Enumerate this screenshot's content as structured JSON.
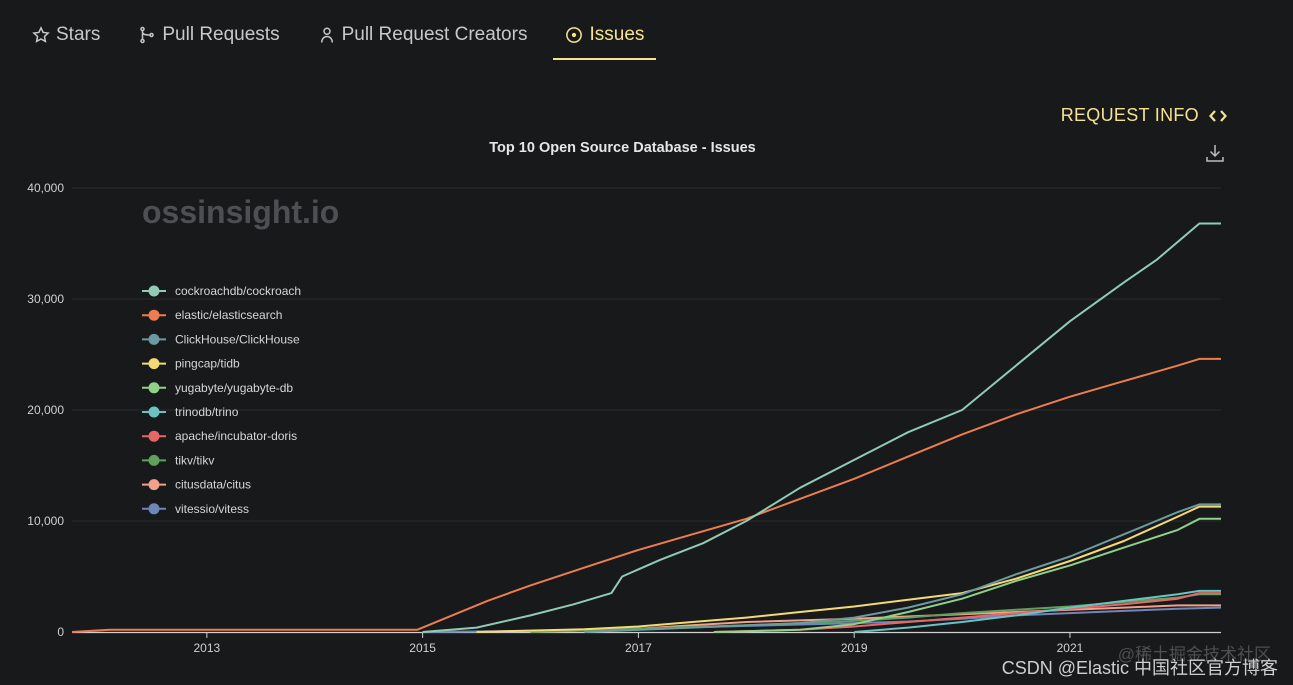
{
  "tabs": [
    {
      "label": "Stars",
      "icon": "star-icon",
      "active": false
    },
    {
      "label": "Pull Requests",
      "icon": "git-pull-request-icon",
      "active": false
    },
    {
      "label": "Pull Request Creators",
      "icon": "person-icon",
      "active": false
    },
    {
      "label": "Issues",
      "icon": "issue-circle-icon",
      "active": true
    }
  ],
  "request_info": {
    "label": "REQUEST INFO",
    "icon": "code-brackets-icon"
  },
  "download": {
    "icon": "download-icon"
  },
  "watermarks": {
    "brand": "ossinsight.io",
    "juejin": "@稀土掘金技术社区",
    "csdn": "CSDN @Elastic 中国社区官方博客"
  },
  "colors": {
    "accent": "#f5e38f",
    "background": "#18191b"
  },
  "chart_data": {
    "type": "line",
    "title": "Top 10 Open Source Database - Issues",
    "xlabel": "",
    "ylabel": "",
    "xlim": [
      2011.75,
      2022.4
    ],
    "ylim": [
      0,
      40000
    ],
    "x_ticks": [
      "2013",
      "2015",
      "2017",
      "2019",
      "2021"
    ],
    "y_ticks": [
      "0",
      "10,000",
      "20,000",
      "30,000",
      "40,000"
    ],
    "grid": true,
    "legend_position": "top-left",
    "series": [
      {
        "name": "cockroachdb/cockroach",
        "color": "#91cbb3",
        "points": [
          [
            2015.0,
            0
          ],
          [
            2015.5,
            400
          ],
          [
            2016.0,
            1500
          ],
          [
            2016.4,
            2500
          ],
          [
            2016.75,
            3500
          ],
          [
            2016.85,
            5000
          ],
          [
            2017.2,
            6500
          ],
          [
            2017.6,
            8000
          ],
          [
            2018.0,
            10000
          ],
          [
            2018.5,
            13000
          ],
          [
            2019.0,
            15500
          ],
          [
            2019.5,
            18000
          ],
          [
            2020.0,
            20000
          ],
          [
            2020.5,
            24000
          ],
          [
            2021.0,
            28000
          ],
          [
            2021.5,
            31500
          ],
          [
            2021.8,
            33500
          ],
          [
            2022.2,
            36800
          ],
          [
            2022.4,
            36800
          ]
        ]
      },
      {
        "name": "elastic/elasticsearch",
        "color": "#ed7d4f",
        "points": [
          [
            2011.75,
            0
          ],
          [
            2012.1,
            200
          ],
          [
            2014.95,
            200
          ],
          [
            2015.2,
            1200
          ],
          [
            2015.6,
            2800
          ],
          [
            2016.0,
            4200
          ],
          [
            2016.5,
            5800
          ],
          [
            2017.0,
            7400
          ],
          [
            2017.5,
            8800
          ],
          [
            2018.0,
            10200
          ],
          [
            2018.5,
            12000
          ],
          [
            2019.0,
            13800
          ],
          [
            2019.5,
            15800
          ],
          [
            2020.0,
            17800
          ],
          [
            2020.5,
            19600
          ],
          [
            2021.0,
            21200
          ],
          [
            2021.5,
            22600
          ],
          [
            2022.0,
            24000
          ],
          [
            2022.2,
            24600
          ],
          [
            2022.4,
            24600
          ]
        ]
      },
      {
        "name": "ClickHouse/ClickHouse",
        "color": "#6d9aa0",
        "points": [
          [
            2016.5,
            0
          ],
          [
            2017.5,
            400
          ],
          [
            2018.5,
            800
          ],
          [
            2019.0,
            1300
          ],
          [
            2019.5,
            2200
          ],
          [
            2020.0,
            3400
          ],
          [
            2020.5,
            5200
          ],
          [
            2021.0,
            6800
          ],
          [
            2021.5,
            8800
          ],
          [
            2022.0,
            10800
          ],
          [
            2022.2,
            11500
          ],
          [
            2022.4,
            11500
          ]
        ]
      },
      {
        "name": "pingcap/tidb",
        "color": "#f3da73",
        "points": [
          [
            2015.5,
            0
          ],
          [
            2016.5,
            250
          ],
          [
            2017.0,
            500
          ],
          [
            2017.5,
            900
          ],
          [
            2018.0,
            1300
          ],
          [
            2018.5,
            1800
          ],
          [
            2019.0,
            2300
          ],
          [
            2019.5,
            2900
          ],
          [
            2020.0,
            3500
          ],
          [
            2020.5,
            4800
          ],
          [
            2021.0,
            6400
          ],
          [
            2021.5,
            8200
          ],
          [
            2022.0,
            10400
          ],
          [
            2022.2,
            11300
          ],
          [
            2022.4,
            11300
          ]
        ]
      },
      {
        "name": "yugabyte/yugabyte-db",
        "color": "#8fd18a",
        "points": [
          [
            2017.7,
            0
          ],
          [
            2018.5,
            200
          ],
          [
            2019.0,
            700
          ],
          [
            2019.5,
            1800
          ],
          [
            2020.0,
            3000
          ],
          [
            2020.5,
            4600
          ],
          [
            2021.0,
            6000
          ],
          [
            2021.5,
            7600
          ],
          [
            2022.0,
            9200
          ],
          [
            2022.2,
            10200
          ],
          [
            2022.4,
            10200
          ]
        ]
      },
      {
        "name": "trinodb/trino",
        "color": "#6ac3c0",
        "points": [
          [
            2019.0,
            0
          ],
          [
            2019.5,
            400
          ],
          [
            2020.0,
            900
          ],
          [
            2020.5,
            1500
          ],
          [
            2021.0,
            2200
          ],
          [
            2021.5,
            2800
          ],
          [
            2022.0,
            3400
          ],
          [
            2022.2,
            3700
          ],
          [
            2022.4,
            3700
          ]
        ]
      },
      {
        "name": "apache/incubator-doris",
        "color": "#e66767",
        "points": [
          [
            2017.7,
            0
          ],
          [
            2018.5,
            200
          ],
          [
            2019.0,
            500
          ],
          [
            2019.5,
            900
          ],
          [
            2020.0,
            1300
          ],
          [
            2020.5,
            1700
          ],
          [
            2021.0,
            2100
          ],
          [
            2021.5,
            2500
          ],
          [
            2022.0,
            3000
          ],
          [
            2022.2,
            3500
          ],
          [
            2022.4,
            3500
          ]
        ]
      },
      {
        "name": "tikv/tikv",
        "color": "#5fa05d",
        "points": [
          [
            2016.0,
            0
          ],
          [
            2017.0,
            300
          ],
          [
            2018.0,
            600
          ],
          [
            2019.0,
            1000
          ],
          [
            2019.5,
            1300
          ],
          [
            2020.0,
            1700
          ],
          [
            2020.5,
            2000
          ],
          [
            2021.0,
            2300
          ],
          [
            2021.5,
            2700
          ],
          [
            2022.0,
            3100
          ],
          [
            2022.2,
            3400
          ],
          [
            2022.4,
            3400
          ]
        ]
      },
      {
        "name": "citusdata/citus",
        "color": "#f1a08a",
        "points": [
          [
            2016.0,
            0
          ],
          [
            2017.0,
            300
          ],
          [
            2017.5,
            600
          ],
          [
            2018.0,
            900
          ],
          [
            2019.0,
            1200
          ],
          [
            2020.0,
            1600
          ],
          [
            2020.5,
            1800
          ],
          [
            2021.0,
            2000
          ],
          [
            2021.5,
            2200
          ],
          [
            2022.0,
            2400
          ],
          [
            2022.4,
            2400
          ]
        ]
      },
      {
        "name": "vitessio/vitess",
        "color": "#6f86b8",
        "points": [
          [
            2015.0,
            0
          ],
          [
            2016.0,
            100
          ],
          [
            2017.0,
            300
          ],
          [
            2018.0,
            550
          ],
          [
            2019.0,
            800
          ],
          [
            2019.5,
            950
          ],
          [
            2020.0,
            1200
          ],
          [
            2020.5,
            1500
          ],
          [
            2021.0,
            1700
          ],
          [
            2021.5,
            1900
          ],
          [
            2022.0,
            2100
          ],
          [
            2022.4,
            2200
          ]
        ]
      }
    ]
  }
}
